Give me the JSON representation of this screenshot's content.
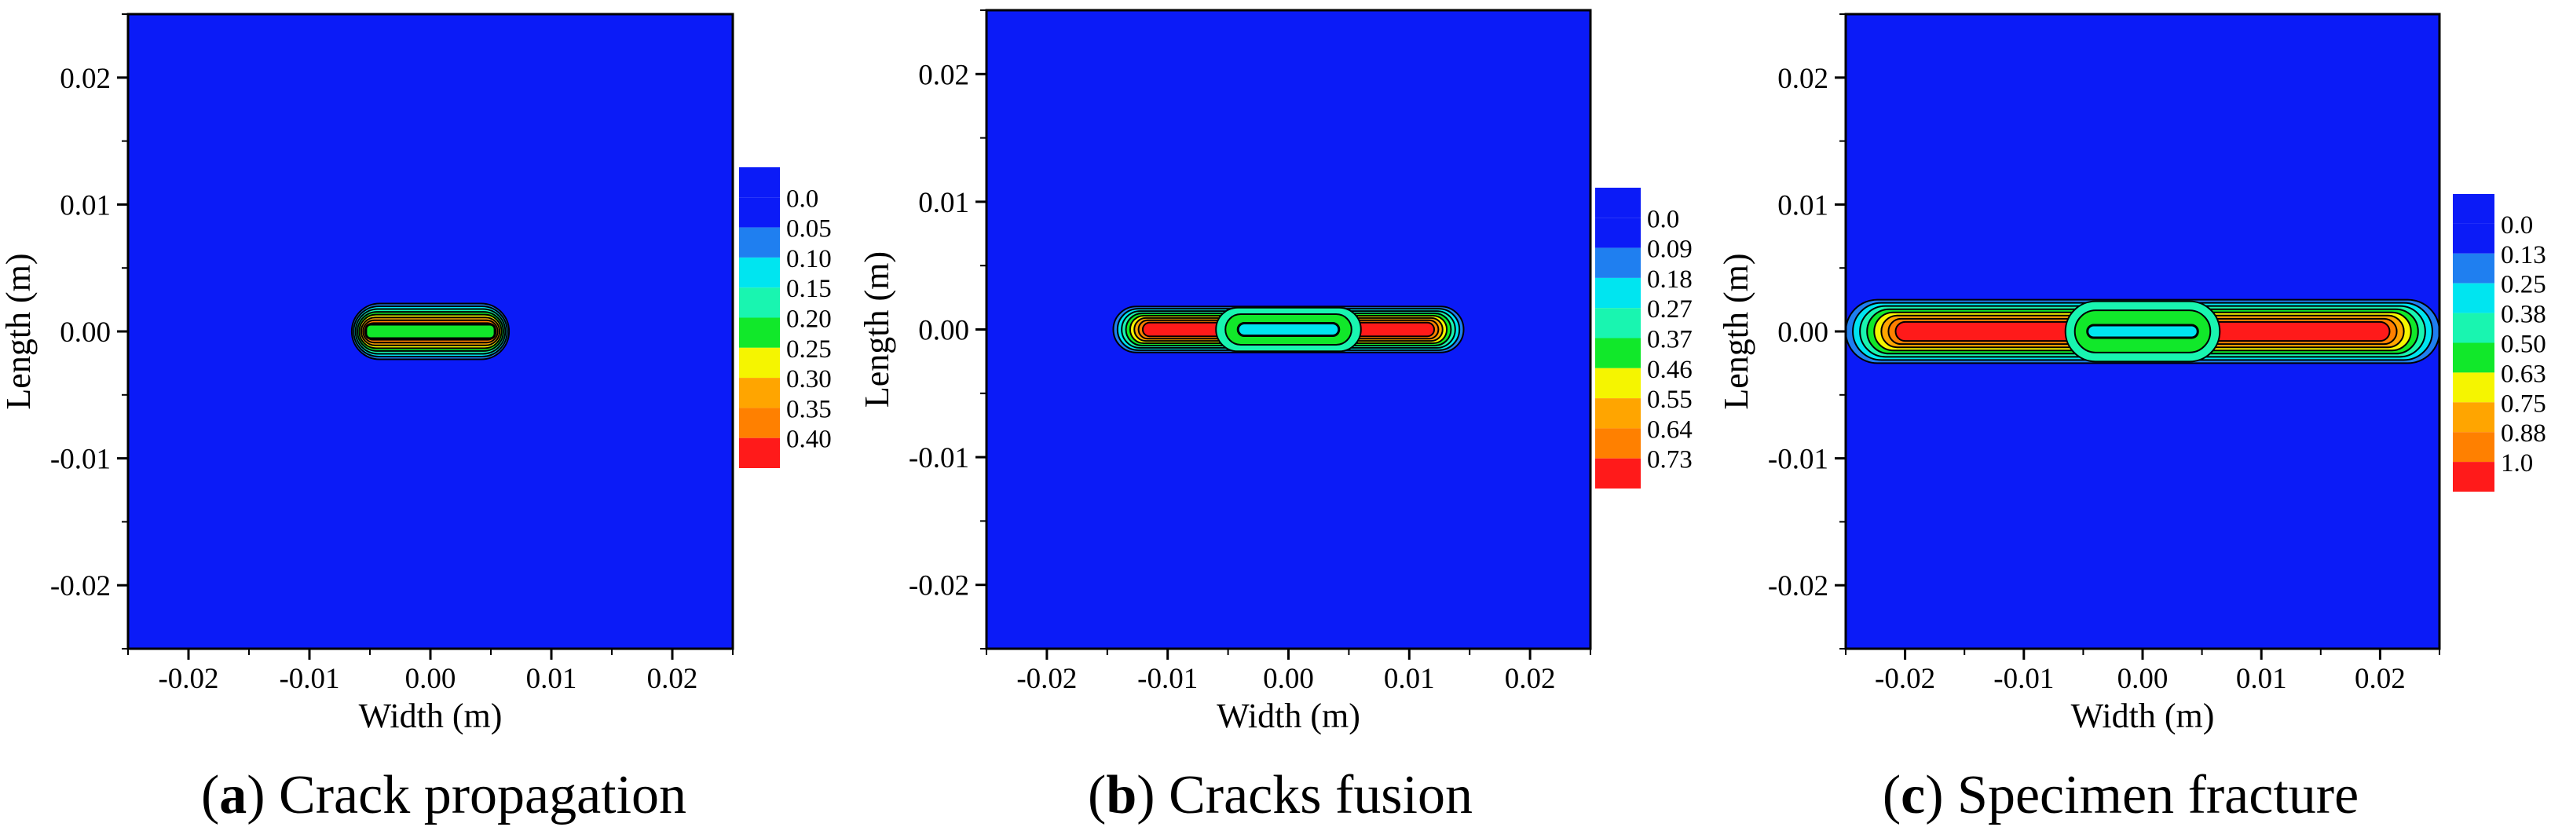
{
  "colors": {
    "background_field": "#0B1BF7",
    "contour_line": "#000000",
    "axis": "#000000"
  },
  "chart_data": [
    {
      "type": "heatmap",
      "panel_letter": "a",
      "caption": "Crack propagation",
      "xlabel": "Width (m)",
      "ylabel": "Length (m)",
      "xlim": [
        -0.025,
        0.025
      ],
      "ylim": [
        -0.025,
        0.025
      ],
      "xticks": [
        -0.02,
        -0.01,
        0.0,
        0.01,
        0.02
      ],
      "xtick_labels": [
        "-0.02",
        "-0.01",
        "0.00",
        "0.01",
        "0.02"
      ],
      "yticks": [
        0.02,
        0.01,
        0.0,
        -0.01,
        -0.02
      ],
      "ytick_labels": [
        "0.02",
        "0.01",
        "0.00",
        "-0.01",
        "-0.02"
      ],
      "legend": {
        "placement": "right",
        "levels": [
          "0.0",
          "0.05",
          "0.10",
          "0.15",
          "0.20",
          "0.25",
          "0.30",
          "0.35",
          "0.40"
        ],
        "colors": [
          "#0B1BF7",
          "#1F7FF0",
          "#00E5F0",
          "#19F5B0",
          "#11E82A",
          "#F5F500",
          "#FFA500",
          "#FF8000",
          "#FF1A1A"
        ]
      },
      "crack_band": {
        "x_range": [
          -0.0065,
          0.0065
        ],
        "y_range": [
          -0.0022,
          0.0022
        ],
        "peak_value": 0.4,
        "center_value": 0.2
      }
    },
    {
      "type": "heatmap",
      "panel_letter": "b",
      "caption": "Cracks fusion",
      "xlabel": "Width (m)",
      "ylabel": "Length (m)",
      "xlim": [
        -0.025,
        0.025
      ],
      "ylim": [
        -0.025,
        0.025
      ],
      "xticks": [
        -0.02,
        -0.01,
        0.0,
        0.01,
        0.02
      ],
      "xtick_labels": [
        "-0.02",
        "-0.01",
        "0.00",
        "0.01",
        "0.02"
      ],
      "yticks": [
        0.02,
        0.01,
        0.0,
        -0.01,
        -0.02
      ],
      "ytick_labels": [
        "0.02",
        "0.01",
        "0.00",
        "-0.01",
        "-0.02"
      ],
      "legend": {
        "placement": "right",
        "levels": [
          "0.0",
          "0.09",
          "0.18",
          "0.27",
          "0.37",
          "0.46",
          "0.55",
          "0.64",
          "0.73"
        ],
        "colors": [
          "#0B1BF7",
          "#1F7FF0",
          "#00E5F0",
          "#19F5B0",
          "#11E82A",
          "#F5F500",
          "#FFA500",
          "#FF8000",
          "#FF1A1A"
        ]
      },
      "crack_band": {
        "x_range": [
          -0.0145,
          0.0145
        ],
        "center_x_range": [
          -0.006,
          0.006
        ],
        "y_range": [
          -0.0018,
          0.0018
        ],
        "peak_value": 0.73,
        "center_value": 0.37
      }
    },
    {
      "type": "heatmap",
      "panel_letter": "c",
      "caption": "Specimen fracture",
      "xlabel": "Width (m)",
      "ylabel": "Length (m)",
      "xlim": [
        -0.025,
        0.025
      ],
      "ylim": [
        -0.025,
        0.025
      ],
      "xticks": [
        -0.02,
        -0.01,
        0.0,
        0.01,
        0.02
      ],
      "xtick_labels": [
        "-0.02",
        "-0.01",
        "0.00",
        "0.01",
        "0.02"
      ],
      "yticks": [
        0.02,
        0.01,
        0.0,
        -0.01,
        -0.02
      ],
      "ytick_labels": [
        "0.02",
        "0.01",
        "0.00",
        "-0.01",
        "-0.02"
      ],
      "legend": {
        "placement": "right",
        "levels": [
          "0.0",
          "0.13",
          "0.25",
          "0.38",
          "0.50",
          "0.63",
          "0.75",
          "0.88",
          "1.0"
        ],
        "colors": [
          "#0B1BF7",
          "#1F7FF0",
          "#00E5F0",
          "#19F5B0",
          "#11E82A",
          "#F5F500",
          "#FFA500",
          "#FF8000",
          "#FF1A1A"
        ]
      },
      "crack_band": {
        "x_range": [
          -0.025,
          0.025
        ],
        "center_x_range": [
          -0.0065,
          0.0065
        ],
        "y_range": [
          -0.0025,
          0.0025
        ],
        "peak_value": 1.0,
        "center_value": 0.5
      }
    }
  ]
}
